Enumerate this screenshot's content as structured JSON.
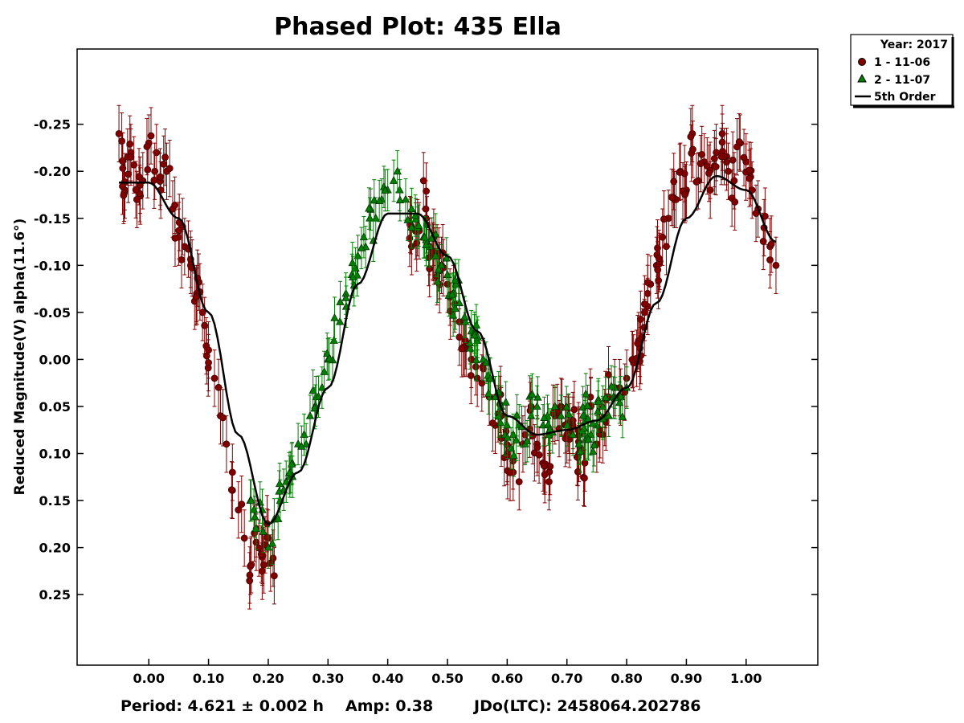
{
  "chart_data": {
    "type": "scatter",
    "title": "Phased Plot: 435 Ella",
    "ylabel": "Reduced Magnitude(V) alpha(11.6°)",
    "xlabel": "",
    "x_ticks": [
      "0.00",
      "0.10",
      "0.20",
      "0.30",
      "0.40",
      "0.50",
      "0.60",
      "0.70",
      "0.80",
      "0.90",
      "1.00"
    ],
    "y_ticks": [
      "-0.25",
      "-0.20",
      "-0.15",
      "-0.10",
      "-0.05",
      "0.00",
      "0.05",
      "0.10",
      "0.15",
      "0.20",
      "0.25"
    ],
    "xlim": [
      -0.12,
      1.12
    ],
    "ylim_top": -0.33,
    "ylim_bottom": 0.325,
    "y_inverted": true,
    "grid": false,
    "legend": {
      "placement": "outside-top-right",
      "header": "Year: 2017",
      "entries": [
        {
          "label": "1 - 11-06",
          "marker": "circle",
          "color": "#800000"
        },
        {
          "label": "2 - 11-07",
          "marker": "triangle",
          "color": "#008000"
        },
        {
          "label": "5th Order",
          "marker": "line",
          "color": "#000000"
        }
      ]
    },
    "series": [
      {
        "name": "1 - 11-06",
        "marker": "circle",
        "color": "#800000",
        "error": 0.03,
        "x": [
          -0.05,
          -0.04,
          -0.03,
          -0.02,
          -0.01,
          0.0,
          0.01,
          0.02,
          0.03,
          0.04,
          0.05,
          0.06,
          0.07,
          0.08,
          0.09,
          0.1,
          0.11,
          0.12,
          0.13,
          0.14,
          0.15,
          0.16,
          0.17,
          0.18,
          0.19,
          0.2,
          0.21,
          0.44,
          0.45,
          0.46,
          0.47,
          0.48,
          0.49,
          0.5,
          0.51,
          0.52,
          0.53,
          0.54,
          0.55,
          0.56,
          0.57,
          0.58,
          0.59,
          0.6,
          0.61,
          0.62,
          0.63,
          0.64,
          0.65,
          0.66,
          0.67,
          0.68,
          0.69,
          0.7,
          0.71,
          0.72,
          0.73,
          0.74,
          0.75,
          0.76,
          0.77,
          0.78,
          0.79,
          0.8,
          0.81,
          0.82,
          0.83,
          0.84,
          0.85,
          0.86,
          0.87,
          0.88,
          0.89,
          0.9,
          0.91,
          0.92,
          0.93,
          0.94,
          0.95,
          0.96,
          0.97,
          0.98,
          0.99,
          1.0,
          1.01,
          1.02,
          1.03,
          1.04,
          1.05
        ],
        "y": [
          -0.24,
          -0.18,
          -0.22,
          -0.17,
          -0.19,
          -0.23,
          -0.2,
          -0.18,
          -0.2,
          -0.16,
          -0.13,
          -0.12,
          -0.1,
          -0.07,
          -0.05,
          -0.01,
          0.02,
          0.06,
          0.09,
          0.12,
          0.16,
          0.19,
          0.22,
          0.18,
          0.21,
          0.19,
          0.23,
          -0.12,
          -0.14,
          -0.19,
          -0.12,
          -0.11,
          -0.1,
          -0.08,
          -0.07,
          -0.04,
          -0.02,
          0.0,
          0.02,
          0.01,
          0.04,
          0.07,
          0.06,
          0.1,
          0.12,
          0.13,
          0.08,
          0.05,
          0.09,
          0.11,
          0.13,
          0.06,
          0.05,
          0.08,
          0.07,
          0.1,
          0.11,
          0.05,
          0.09,
          0.08,
          0.04,
          0.03,
          0.04,
          0.02,
          0.0,
          -0.02,
          -0.05,
          -0.08,
          -0.1,
          -0.13,
          -0.15,
          -0.17,
          -0.2,
          -0.18,
          -0.24,
          -0.19,
          -0.21,
          -0.18,
          -0.22,
          -0.24,
          -0.2,
          -0.19,
          -0.23,
          -0.21,
          -0.18,
          -0.16,
          -0.14,
          -0.12,
          -0.1
        ],
        "count": 370
      },
      {
        "name": "2 - 11-07",
        "marker": "triangle",
        "color": "#008000",
        "error": 0.022,
        "x": [
          0.17,
          0.18,
          0.19,
          0.2,
          0.21,
          0.22,
          0.23,
          0.24,
          0.25,
          0.26,
          0.27,
          0.28,
          0.29,
          0.3,
          0.31,
          0.32,
          0.33,
          0.34,
          0.35,
          0.36,
          0.37,
          0.38,
          0.39,
          0.4,
          0.41,
          0.42,
          0.43,
          0.44,
          0.45,
          0.46,
          0.47,
          0.48,
          0.49,
          0.5,
          0.51,
          0.52,
          0.53,
          0.54,
          0.55,
          0.56,
          0.57,
          0.58,
          0.59,
          0.6,
          0.61,
          0.62,
          0.63,
          0.64,
          0.65,
          0.66,
          0.67,
          0.68,
          0.69,
          0.7,
          0.71,
          0.72,
          0.73,
          0.74,
          0.75,
          0.76,
          0.77,
          0.78,
          0.79,
          0.8
        ],
        "y": [
          0.15,
          0.18,
          0.16,
          0.2,
          0.17,
          0.15,
          0.13,
          0.11,
          0.09,
          0.08,
          0.06,
          0.04,
          0.03,
          0.0,
          -0.02,
          -0.04,
          -0.07,
          -0.09,
          -0.11,
          -0.13,
          -0.15,
          -0.15,
          -0.17,
          -0.18,
          -0.19,
          -0.18,
          -0.17,
          -0.16,
          -0.14,
          -0.13,
          -0.12,
          -0.11,
          -0.1,
          -0.09,
          -0.07,
          -0.06,
          -0.04,
          -0.03,
          -0.02,
          0.0,
          0.02,
          0.04,
          0.05,
          0.07,
          0.08,
          0.07,
          0.09,
          0.06,
          0.05,
          0.07,
          0.08,
          0.05,
          0.06,
          0.07,
          0.08,
          0.09,
          0.06,
          0.08,
          0.07,
          0.05,
          0.06,
          0.03,
          0.04,
          0.03
        ],
        "count": 190
      },
      {
        "name": "5th Order",
        "type": "line",
        "color": "#000000",
        "x": [
          -0.05,
          0.0,
          0.05,
          0.1,
          0.15,
          0.2,
          0.25,
          0.3,
          0.35,
          0.4,
          0.45,
          0.5,
          0.55,
          0.6,
          0.65,
          0.7,
          0.75,
          0.8,
          0.85,
          0.9,
          0.95,
          1.0,
          1.05
        ],
        "y": [
          -0.188,
          -0.188,
          -0.15,
          -0.05,
          0.08,
          0.175,
          0.12,
          0.03,
          -0.08,
          -0.155,
          -0.155,
          -0.11,
          -0.03,
          0.06,
          0.08,
          0.075,
          0.065,
          0.03,
          -0.06,
          -0.15,
          -0.195,
          -0.18,
          -0.125
        ]
      }
    ]
  },
  "footer": {
    "period": "Period: 4.621 ± 0.002 h",
    "amp": "Amp: 0.38",
    "jdo": "JDo(LTC): 2458064.202786"
  }
}
